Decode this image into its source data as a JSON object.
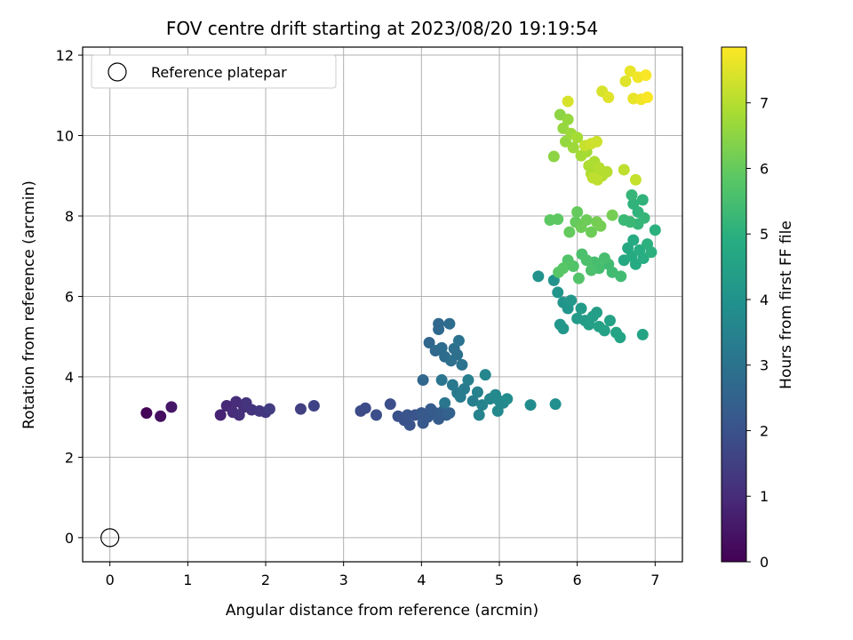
{
  "chart_data": {
    "type": "scatter",
    "title": "FOV centre drift starting at 2023/08/20 19:19:54",
    "xlabel": "Angular distance from reference (arcmin)",
    "ylabel": "Rotation from reference (arcmin)",
    "xlim": [
      -0.35,
      7.35
    ],
    "ylim": [
      -0.6,
      12.2
    ],
    "xticks": [
      0,
      1,
      2,
      3,
      4,
      5,
      6,
      7
    ],
    "yticks": [
      0,
      2,
      4,
      6,
      8,
      10,
      12
    ],
    "grid": true,
    "legend": {
      "position": "top-left",
      "entries": [
        "Reference platepar"
      ]
    },
    "reference_point": {
      "x": 0,
      "y": 0,
      "marker": "hollow-circle"
    },
    "colorbar": {
      "label": "Hours from first FF file",
      "colormap": "viridis",
      "range": [
        0,
        7.85
      ],
      "ticks": [
        0,
        1,
        2,
        3,
        4,
        5,
        6,
        7
      ]
    },
    "series": [
      {
        "color_by": "hours",
        "points": [
          [
            0.47,
            3.1,
            0.1
          ],
          [
            0.65,
            3.02,
            0.3
          ],
          [
            0.79,
            3.25,
            0.5
          ],
          [
            1.42,
            3.05,
            0.8
          ],
          [
            1.5,
            3.28,
            0.9
          ],
          [
            1.58,
            3.12,
            1.0
          ],
          [
            1.62,
            3.38,
            1.0
          ],
          [
            1.66,
            3.05,
            1.1
          ],
          [
            1.72,
            3.25,
            1.1
          ],
          [
            1.75,
            3.35,
            1.2
          ],
          [
            1.82,
            3.18,
            1.2
          ],
          [
            1.92,
            3.15,
            1.3
          ],
          [
            2.0,
            3.12,
            1.3
          ],
          [
            2.05,
            3.2,
            1.4
          ],
          [
            2.45,
            3.2,
            1.5
          ],
          [
            2.62,
            3.28,
            1.6
          ],
          [
            3.22,
            3.15,
            1.8
          ],
          [
            3.28,
            3.22,
            1.8
          ],
          [
            3.42,
            3.05,
            1.9
          ],
          [
            3.6,
            3.32,
            1.9
          ],
          [
            3.7,
            3.02,
            2.0
          ],
          [
            3.78,
            2.92,
            2.0
          ],
          [
            3.82,
            3.05,
            2.1
          ],
          [
            3.85,
            2.8,
            2.1
          ],
          [
            3.92,
            3.05,
            2.1
          ],
          [
            4.0,
            3.1,
            2.2
          ],
          [
            4.02,
            2.85,
            2.2
          ],
          [
            4.08,
            3.0,
            2.2
          ],
          [
            4.12,
            3.2,
            2.3
          ],
          [
            4.18,
            3.1,
            2.3
          ],
          [
            4.22,
            2.95,
            2.3
          ],
          [
            4.28,
            3.15,
            2.4
          ],
          [
            4.32,
            3.05,
            2.4
          ],
          [
            4.36,
            3.1,
            2.5
          ],
          [
            4.02,
            3.92,
            2.6
          ],
          [
            4.1,
            4.85,
            2.6
          ],
          [
            4.18,
            4.65,
            2.7
          ],
          [
            4.22,
            5.32,
            2.7
          ],
          [
            4.22,
            5.18,
            2.7
          ],
          [
            4.26,
            4.72,
            2.8
          ],
          [
            4.3,
            4.5,
            2.8
          ],
          [
            4.36,
            5.32,
            2.8
          ],
          [
            4.38,
            4.4,
            2.9
          ],
          [
            4.42,
            4.7,
            2.9
          ],
          [
            4.46,
            4.55,
            2.9
          ],
          [
            4.48,
            4.9,
            3.0
          ],
          [
            4.52,
            4.3,
            3.0
          ],
          [
            4.26,
            3.92,
            3.1
          ],
          [
            4.3,
            3.35,
            3.1
          ],
          [
            4.4,
            3.8,
            3.2
          ],
          [
            4.46,
            3.6,
            3.2
          ],
          [
            4.5,
            3.5,
            3.3
          ],
          [
            4.55,
            3.7,
            3.3
          ],
          [
            4.6,
            3.92,
            3.4
          ],
          [
            4.66,
            3.4,
            3.4
          ],
          [
            4.72,
            3.62,
            3.5
          ],
          [
            4.78,
            3.3,
            3.5
          ],
          [
            4.74,
            3.05,
            3.5
          ],
          [
            4.82,
            4.05,
            3.6
          ],
          [
            4.88,
            3.45,
            3.6
          ],
          [
            4.95,
            3.55,
            3.7
          ],
          [
            5.0,
            3.4,
            3.7
          ],
          [
            5.05,
            3.35,
            3.7
          ],
          [
            4.98,
            3.15,
            3.7
          ],
          [
            5.1,
            3.45,
            3.8
          ],
          [
            5.4,
            3.3,
            3.8
          ],
          [
            5.72,
            3.32,
            3.9
          ],
          [
            5.5,
            6.5,
            4.0
          ],
          [
            5.7,
            6.4,
            4.0
          ],
          [
            5.75,
            6.1,
            4.1
          ],
          [
            5.82,
            5.85,
            4.1
          ],
          [
            5.88,
            5.7,
            4.1
          ],
          [
            5.78,
            5.3,
            4.2
          ],
          [
            5.82,
            5.2,
            4.2
          ],
          [
            5.92,
            5.9,
            4.2
          ],
          [
            6.0,
            5.45,
            4.3
          ],
          [
            6.05,
            5.7,
            4.3
          ],
          [
            6.1,
            5.4,
            4.3
          ],
          [
            6.15,
            5.3,
            4.4
          ],
          [
            6.2,
            5.5,
            4.4
          ],
          [
            6.25,
            5.6,
            4.4
          ],
          [
            6.28,
            5.25,
            4.5
          ],
          [
            6.35,
            5.15,
            4.5
          ],
          [
            6.42,
            5.4,
            4.5
          ],
          [
            6.5,
            5.1,
            4.6
          ],
          [
            6.55,
            4.98,
            4.6
          ],
          [
            6.84,
            5.05,
            4.6
          ],
          [
            6.6,
            6.9,
            4.7
          ],
          [
            6.65,
            7.2,
            4.7
          ],
          [
            6.7,
            7.0,
            4.8
          ],
          [
            6.72,
            7.4,
            4.8
          ],
          [
            6.75,
            6.8,
            4.8
          ],
          [
            6.8,
            7.15,
            4.9
          ],
          [
            6.85,
            6.95,
            4.9
          ],
          [
            6.9,
            7.3,
            5.0
          ],
          [
            6.95,
            7.1,
            5.0
          ],
          [
            7.0,
            7.65,
            5.0
          ],
          [
            6.72,
            8.3,
            5.1
          ],
          [
            6.78,
            8.1,
            5.1
          ],
          [
            6.84,
            8.4,
            5.1
          ],
          [
            6.7,
            8.52,
            5.2
          ],
          [
            6.86,
            7.95,
            5.2
          ],
          [
            6.78,
            7.8,
            5.2
          ],
          [
            6.68,
            7.85,
            5.3
          ],
          [
            6.6,
            7.9,
            5.3
          ],
          [
            6.56,
            6.5,
            5.4
          ],
          [
            6.45,
            6.6,
            5.4
          ],
          [
            6.4,
            6.8,
            5.4
          ],
          [
            6.35,
            6.95,
            5.5
          ],
          [
            6.28,
            6.7,
            5.5
          ],
          [
            6.22,
            6.85,
            5.5
          ],
          [
            6.18,
            6.65,
            5.6
          ],
          [
            6.12,
            6.9,
            5.6
          ],
          [
            6.06,
            7.05,
            5.6
          ],
          [
            6.02,
            6.45,
            5.7
          ],
          [
            5.95,
            6.75,
            5.7
          ],
          [
            5.88,
            6.9,
            5.7
          ],
          [
            5.82,
            6.7,
            5.8
          ],
          [
            5.76,
            6.6,
            5.8
          ],
          [
            5.65,
            7.9,
            5.9
          ],
          [
            5.75,
            7.92,
            5.9
          ],
          [
            5.9,
            7.6,
            6.0
          ],
          [
            5.98,
            7.85,
            6.0
          ],
          [
            6.0,
            8.1,
            6.0
          ],
          [
            6.05,
            7.72,
            6.1
          ],
          [
            6.12,
            7.9,
            6.1
          ],
          [
            6.18,
            7.6,
            6.1
          ],
          [
            6.25,
            7.85,
            6.2
          ],
          [
            6.3,
            7.75,
            6.2
          ],
          [
            6.45,
            8.02,
            6.2
          ],
          [
            5.7,
            9.48,
            6.5
          ],
          [
            5.78,
            10.52,
            6.5
          ],
          [
            5.82,
            10.18,
            6.6
          ],
          [
            5.85,
            9.85,
            6.6
          ],
          [
            5.88,
            10.4,
            6.6
          ],
          [
            5.92,
            10.05,
            6.7
          ],
          [
            5.95,
            9.7,
            6.7
          ],
          [
            6.0,
            9.95,
            6.8
          ],
          [
            6.05,
            9.5,
            6.8
          ],
          [
            6.12,
            9.6,
            6.8
          ],
          [
            6.15,
            9.25,
            6.9
          ],
          [
            6.18,
            9.05,
            6.9
          ],
          [
            6.22,
            9.35,
            6.9
          ],
          [
            6.28,
            9.2,
            7.0
          ],
          [
            6.32,
            9.0,
            7.0
          ],
          [
            6.38,
            9.1,
            7.0
          ],
          [
            6.2,
            8.95,
            7.1
          ],
          [
            6.26,
            8.9,
            7.1
          ],
          [
            6.6,
            9.15,
            7.1
          ],
          [
            6.75,
            8.9,
            7.2
          ],
          [
            6.1,
            9.75,
            7.2
          ],
          [
            6.18,
            9.8,
            7.3
          ],
          [
            6.25,
            9.85,
            7.3
          ],
          [
            5.88,
            10.85,
            7.4
          ],
          [
            6.32,
            11.1,
            7.4
          ],
          [
            6.4,
            10.95,
            7.5
          ],
          [
            6.62,
            11.35,
            7.5
          ],
          [
            6.68,
            11.6,
            7.6
          ],
          [
            6.72,
            10.92,
            7.6
          ],
          [
            6.78,
            11.45,
            7.7
          ],
          [
            6.82,
            10.9,
            7.7
          ],
          [
            6.88,
            11.5,
            7.8
          ],
          [
            6.9,
            10.95,
            7.8
          ]
        ]
      }
    ]
  }
}
